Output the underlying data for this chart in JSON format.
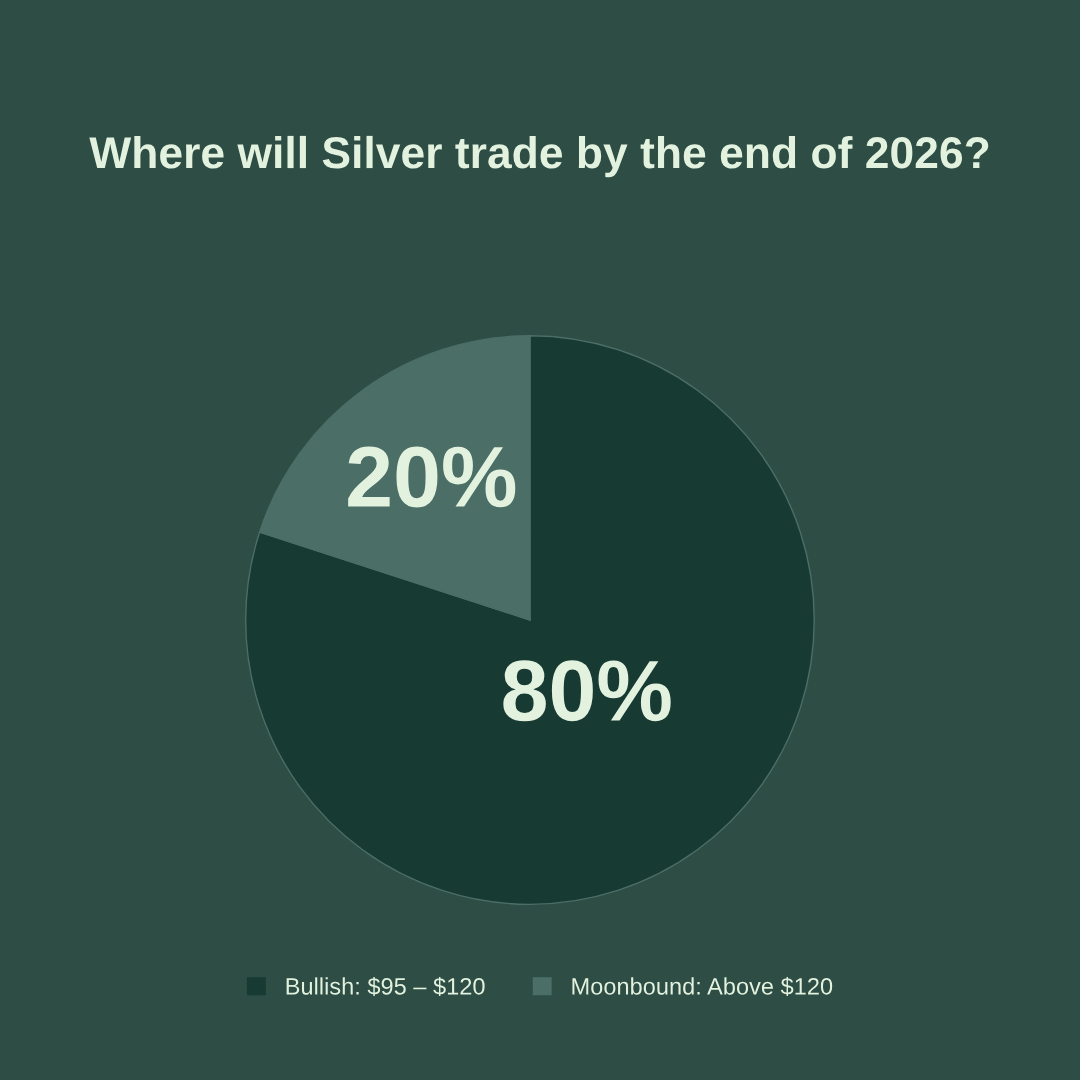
{
  "chart_data": {
    "type": "pie",
    "title": "Where will Silver trade by the end of 2026?",
    "categories": [
      "Bullish: $95 – $120",
      "Moonbound: Above $120"
    ],
    "values": [
      80,
      20
    ],
    "colors": [
      "#173b33",
      "#4b6f67"
    ],
    "value_labels": [
      "80%",
      "20%"
    ],
    "legend": "bottom"
  }
}
